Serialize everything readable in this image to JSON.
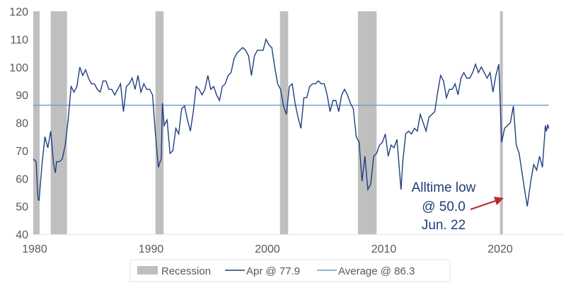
{
  "chart_data": {
    "type": "line",
    "title": "",
    "xlabel": "",
    "ylabel": "",
    "xlim": [
      1979.9,
      2025.5
    ],
    "ylim": [
      40,
      120
    ],
    "yticks": [
      "40",
      "50",
      "60",
      "70",
      "80",
      "90",
      "100",
      "110",
      "120"
    ],
    "xticks": [
      "1980",
      "1990",
      "2000",
      "2010",
      "2020"
    ],
    "grid": false,
    "legend_position": "bottom",
    "colors": {
      "series": "#1f3f7f",
      "average": "#6d9bc3",
      "recession": "#bfbfbf",
      "annotation_text": "#1f3d7a",
      "arrow": "#c0272d",
      "axis_text": "#595959"
    },
    "legend": {
      "recession": "Recession",
      "series": "Apr @ 77.9",
      "average": "Average @ 86.3"
    },
    "average": 86.3,
    "recessions": [
      [
        1980.0,
        1980.55
      ],
      [
        1981.5,
        1982.9
      ],
      [
        1990.5,
        1991.2
      ],
      [
        2001.2,
        2001.9
      ],
      [
        2007.9,
        2009.5
      ],
      [
        2020.1,
        2020.35
      ]
    ],
    "annotation": {
      "lines": [
        "Alltime low",
        "@ 50.0",
        "Jun. 22"
      ],
      "points_to": [
        2022.45,
        50.0
      ]
    },
    "series": [
      {
        "name": "Apr @ 77.9",
        "x": [
          1980.0,
          1980.25,
          1980.4,
          1980.5,
          1980.75,
          1981.0,
          1981.25,
          1981.5,
          1981.75,
          1981.9,
          1982.0,
          1982.25,
          1982.5,
          1982.75,
          1983.0,
          1983.25,
          1983.5,
          1983.75,
          1984.0,
          1984.25,
          1984.5,
          1984.75,
          1985.0,
          1985.25,
          1985.5,
          1985.75,
          1986.0,
          1986.25,
          1986.5,
          1986.75,
          1987.0,
          1987.25,
          1987.5,
          1987.75,
          1988.0,
          1988.25,
          1988.5,
          1988.75,
          1989.0,
          1989.25,
          1989.5,
          1989.75,
          1990.0,
          1990.25,
          1990.5,
          1990.75,
          1990.9,
          1991.0,
          1991.1,
          1991.25,
          1991.5,
          1991.75,
          1992.0,
          1992.25,
          1992.5,
          1992.75,
          1993.0,
          1993.25,
          1993.5,
          1993.75,
          1994.0,
          1994.25,
          1994.5,
          1994.75,
          1995.0,
          1995.25,
          1995.5,
          1995.75,
          1996.0,
          1996.25,
          1996.5,
          1996.75,
          1997.0,
          1997.25,
          1997.5,
          1997.75,
          1998.0,
          1998.25,
          1998.5,
          1998.75,
          1999.0,
          1999.25,
          1999.5,
          1999.75,
          2000.0,
          2000.25,
          2000.5,
          2000.75,
          2001.0,
          2001.25,
          2001.5,
          2001.75,
          2002.0,
          2002.25,
          2002.5,
          2002.75,
          2003.0,
          2003.25,
          2003.5,
          2003.75,
          2004.0,
          2004.25,
          2004.5,
          2004.75,
          2005.0,
          2005.25,
          2005.5,
          2005.75,
          2006.0,
          2006.25,
          2006.5,
          2006.75,
          2007.0,
          2007.25,
          2007.5,
          2007.75,
          2008.0,
          2008.25,
          2008.5,
          2008.75,
          2009.0,
          2009.25,
          2009.5,
          2009.75,
          2010.0,
          2010.25,
          2010.5,
          2010.75,
          2011.0,
          2011.25,
          2011.6,
          2011.75,
          2012.0,
          2012.25,
          2012.5,
          2012.75,
          2013.0,
          2013.25,
          2013.5,
          2013.75,
          2014.0,
          2014.25,
          2014.5,
          2014.75,
          2015.0,
          2015.25,
          2015.5,
          2015.75,
          2016.0,
          2016.25,
          2016.5,
          2016.75,
          2017.0,
          2017.25,
          2017.5,
          2017.75,
          2018.0,
          2018.25,
          2018.5,
          2018.75,
          2019.0,
          2019.25,
          2019.5,
          2019.75,
          2020.0,
          2020.25,
          2020.5,
          2020.75,
          2021.0,
          2021.25,
          2021.5,
          2021.75,
          2022.0,
          2022.25,
          2022.45,
          2022.75,
          2023.0,
          2023.25,
          2023.5,
          2023.75,
          2024.0,
          2024.1,
          2024.2,
          2024.3
        ],
        "values": [
          67,
          66,
          53,
          52,
          65,
          75,
          71,
          77,
          65,
          62,
          66,
          66,
          67,
          72,
          81,
          93,
          91,
          93,
          100,
          97,
          99,
          96,
          94,
          94,
          92,
          91,
          95,
          95,
          92,
          92,
          90,
          92,
          94,
          84,
          93,
          94,
          96,
          92,
          97,
          91,
          94,
          92,
          92,
          90,
          76,
          64,
          66,
          67,
          87,
          79,
          81,
          69,
          70,
          78,
          76,
          85,
          86,
          81,
          77,
          84,
          93,
          92,
          90,
          92,
          97,
          92,
          93,
          90,
          88,
          93,
          94,
          97,
          98,
          103,
          105,
          106,
          107,
          106,
          104,
          97,
          104,
          106,
          106,
          106,
          110,
          108,
          107,
          100,
          94,
          92,
          86,
          83,
          93,
          94,
          87,
          82,
          78,
          89,
          89,
          93,
          94,
          94,
          95,
          94,
          94,
          90,
          84,
          88,
          88,
          84,
          90,
          92,
          90,
          87,
          85,
          75,
          73,
          59,
          68,
          56,
          58,
          68,
          69,
          72,
          73,
          76,
          68,
          72,
          71,
          74,
          56,
          66,
          76,
          77,
          76,
          78,
          77,
          83,
          80,
          77,
          82,
          83,
          84,
          91,
          97,
          95,
          89,
          92,
          92,
          94,
          90,
          96,
          98,
          96,
          96,
          98,
          101,
          98,
          100,
          98,
          96,
          98,
          91,
          97,
          101,
          73,
          78,
          79,
          80,
          86,
          72,
          69,
          62,
          55,
          50,
          59,
          65,
          63,
          68,
          64,
          79,
          76.9,
          79.4,
          77.9
        ]
      }
    ]
  }
}
